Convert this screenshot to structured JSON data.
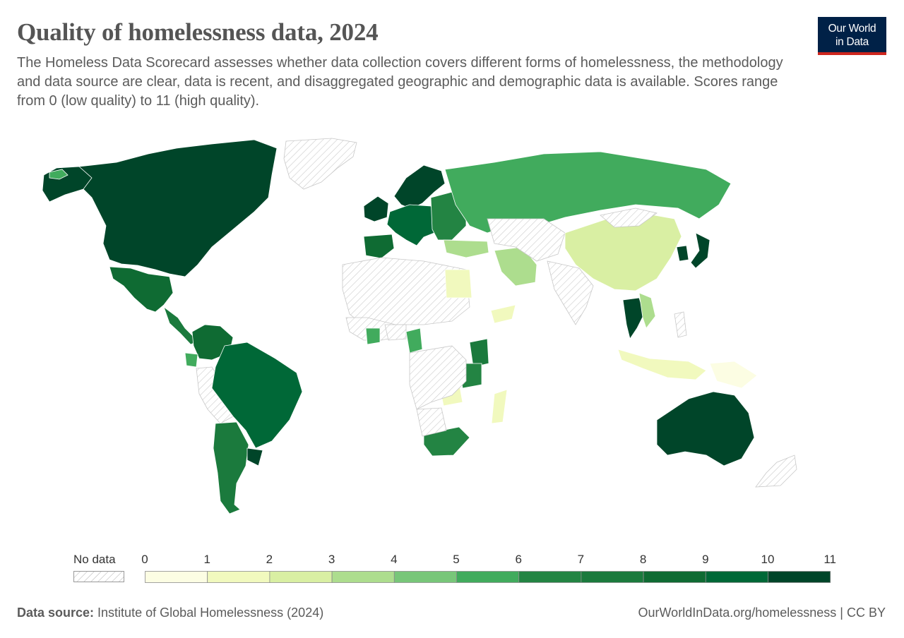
{
  "header": {
    "title": "Quality of homelessness data, 2024",
    "subtitle": "The Homeless Data Scorecard assesses whether data collection covers different forms of homelessness, the methodology and data source are clear, data is recent, and disaggregated geographic and demographic data is available. Scores range from 0 (low quality) to 11 (high quality).",
    "logo_line1": "Our World",
    "logo_line2": "in Data"
  },
  "legend": {
    "no_data_label": "No data",
    "ticks": [
      "0",
      "1",
      "2",
      "3",
      "4",
      "5",
      "6",
      "7",
      "8",
      "9",
      "10",
      "11"
    ],
    "colors": [
      "#fcfde3",
      "#f1f9be",
      "#d9efa3",
      "#addd8e",
      "#78c679",
      "#41ab5d",
      "#238443",
      "#1b7a3d",
      "#0f6b33",
      "#006837",
      "#004529"
    ]
  },
  "map_data": {
    "type": "choropleth",
    "scale": {
      "min": 0,
      "max": 11
    },
    "regions": [
      {
        "name": "Canada & USA",
        "value": 10.5
      },
      {
        "name": "Greenland",
        "value": null
      },
      {
        "name": "Alaska",
        "value": 10.5
      },
      {
        "name": "Mexico",
        "value": 8
      },
      {
        "name": "Central America",
        "value": 7
      },
      {
        "name": "Colombia & Venezuela",
        "value": 8
      },
      {
        "name": "Ecuador",
        "value": 5
      },
      {
        "name": "Peru & Bolivia",
        "value": null
      },
      {
        "name": "Brazil",
        "value": 9
      },
      {
        "name": "Argentina & Chile",
        "value": 7
      },
      {
        "name": "Uruguay",
        "value": 10
      },
      {
        "name": "Iceland",
        "value": 5
      },
      {
        "name": "United Kingdom & Ireland",
        "value": 10
      },
      {
        "name": "Norway, Sweden & Finland",
        "value": 10
      },
      {
        "name": "Western & Central Europe",
        "value": 9
      },
      {
        "name": "Iberia",
        "value": 8
      },
      {
        "name": "Eastern Europe & Balkans",
        "value": 6
      },
      {
        "name": "Russia",
        "value": 5
      },
      {
        "name": "Turkey",
        "value": 3
      },
      {
        "name": "Iran",
        "value": 3
      },
      {
        "name": "Central Asia",
        "value": null
      },
      {
        "name": "China",
        "value": 2
      },
      {
        "name": "Mongolia",
        "value": null
      },
      {
        "name": "India",
        "value": null
      },
      {
        "name": "Japan",
        "value": 10
      },
      {
        "name": "South Korea",
        "value": 10
      },
      {
        "name": "Thailand",
        "value": 10
      },
      {
        "name": "Vietnam",
        "value": 3
      },
      {
        "name": "Indonesia",
        "value": 1
      },
      {
        "name": "Philippines",
        "value": null
      },
      {
        "name": "Papua New Guinea",
        "value": 0
      },
      {
        "name": "Australia",
        "value": 10.5
      },
      {
        "name": "New Zealand",
        "value": null
      },
      {
        "name": "North Africa",
        "value": null
      },
      {
        "name": "Egypt",
        "value": 1
      },
      {
        "name": "Yemen",
        "value": 1
      },
      {
        "name": "West Africa",
        "value": null
      },
      {
        "name": "Ghana",
        "value": 5
      },
      {
        "name": "Nigeria",
        "value": null
      },
      {
        "name": "Cameroon",
        "value": 5
      },
      {
        "name": "Kenya",
        "value": 7
      },
      {
        "name": "Tanzania",
        "value": 6
      },
      {
        "name": "Zambia",
        "value": 1
      },
      {
        "name": "Madagascar",
        "value": 1
      },
      {
        "name": "South Africa",
        "value": 6
      },
      {
        "name": "Namibia & Botswana",
        "value": null
      },
      {
        "name": "Central Africa",
        "value": null
      }
    ]
  },
  "footer": {
    "source_label": "Data source:",
    "source_text": " Institute of Global Homelessness (2024)",
    "credit": "OurWorldInData.org/homelessness | CC BY"
  }
}
